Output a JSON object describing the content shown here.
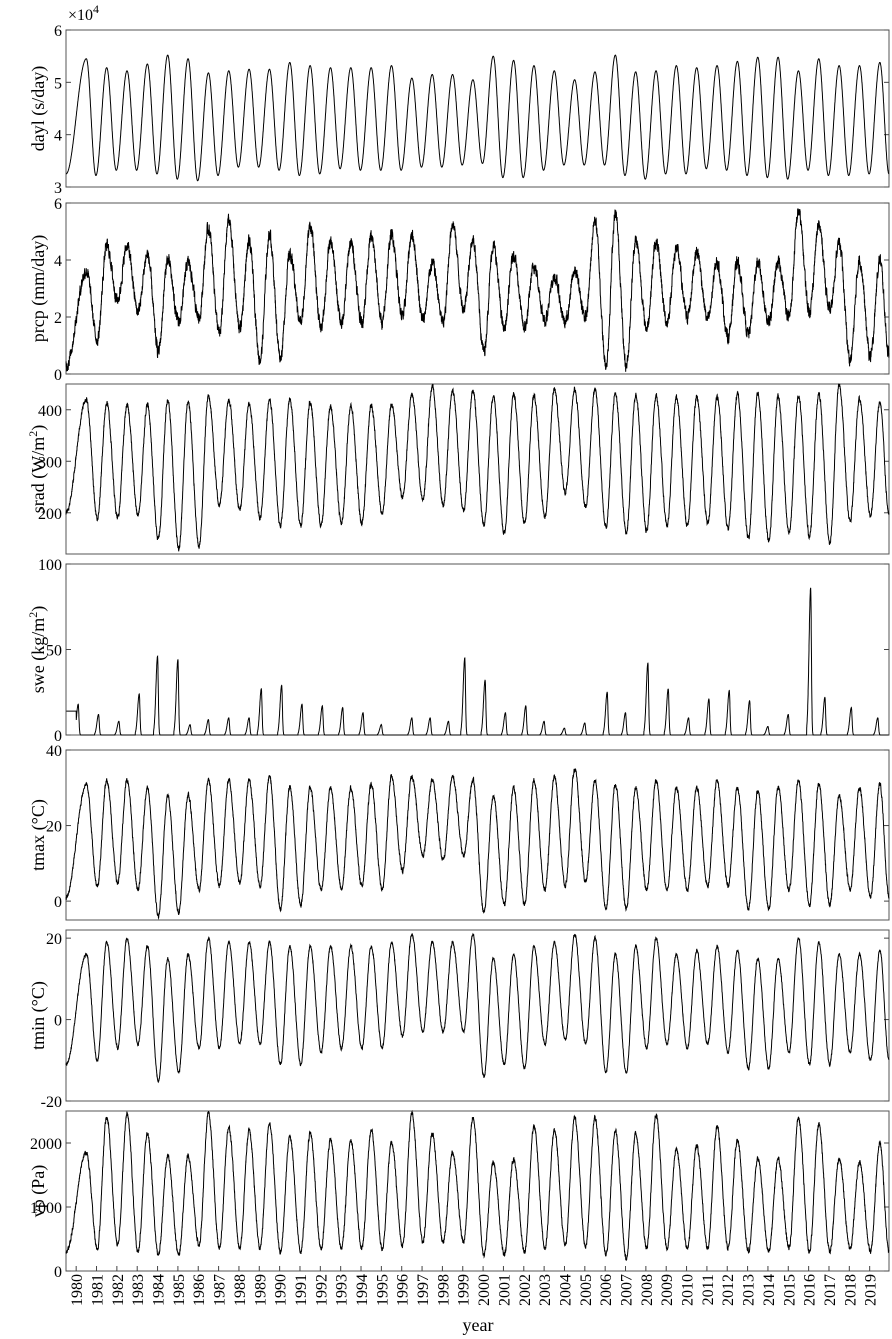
{
  "figure": {
    "xlabel": "year",
    "years": [
      "1980",
      "1981",
      "1982",
      "1983",
      "1984",
      "1985",
      "1986",
      "1987",
      "1988",
      "1989",
      "1990",
      "1991",
      "1992",
      "1993",
      "1994",
      "1995",
      "1996",
      "1997",
      "1998",
      "1999",
      "2000",
      "2001",
      "2002",
      "2003",
      "2004",
      "2005",
      "2006",
      "2007",
      "2008",
      "2009",
      "2010",
      "2011",
      "2012",
      "2013",
      "2014",
      "2015",
      "2016",
      "2017",
      "2018",
      "2019"
    ]
  },
  "chart_data": [
    {
      "type": "line",
      "ylabel": "dayl (s/day)",
      "exponent_label": "×10",
      "exponent_power": "4",
      "ylim": [
        3,
        6
      ],
      "yticks": [
        3,
        4,
        5,
        6
      ],
      "yticklabels": [
        "3",
        "4",
        "5",
        "6"
      ],
      "x_unit": "year (fractional)",
      "series": [
        {
          "values_note": "daily-mean day length, annual cycle (×10^4 s/day)",
          "peaks": [
            5.45,
            5.28,
            5.22,
            5.35,
            5.52,
            5.45,
            5.18,
            5.22,
            5.25,
            5.25,
            5.38,
            5.32,
            5.28,
            5.28,
            5.28,
            5.32,
            5.08,
            5.15,
            5.15,
            5.05,
            5.5,
            5.42,
            5.32,
            5.22,
            5.05,
            5.2,
            5.52,
            5.2,
            5.22,
            5.32,
            5.28,
            5.32,
            5.4,
            5.48,
            5.48,
            5.22,
            5.45,
            5.32,
            5.32,
            5.38
          ],
          "troughs": [
            3.22,
            3.32,
            3.32,
            3.25,
            3.15,
            3.12,
            3.22,
            3.38,
            3.38,
            3.32,
            3.22,
            3.25,
            3.35,
            3.32,
            3.32,
            3.32,
            3.38,
            3.38,
            3.42,
            3.45,
            3.18,
            3.18,
            3.32,
            3.42,
            3.42,
            3.42,
            3.22,
            3.15,
            3.25,
            3.25,
            3.35,
            3.32,
            3.22,
            3.18,
            3.15,
            3.32,
            3.22,
            3.22,
            3.25,
            3.22
          ],
          "start": 3.25,
          "end": 3.25
        }
      ]
    },
    {
      "type": "line",
      "ylabel": "prcp (mm/day)",
      "ylim": [
        0,
        6
      ],
      "yticks": [
        0,
        2,
        4,
        6
      ],
      "yticklabels": [
        "0",
        "2",
        "4",
        "6"
      ],
      "series": [
        {
          "values_note": "daily precipitation (smoothed), mm/day",
          "peaks": [
            3.6,
            4.5,
            4.5,
            4.2,
            4.0,
            3.9,
            5.1,
            5.4,
            4.6,
            4.9,
            4.2,
            5.2,
            4.6,
            4.6,
            4.8,
            4.9,
            4.9,
            3.9,
            5.3,
            4.7,
            4.5,
            4.2,
            3.8,
            3.4,
            3.6,
            5.4,
            5.6,
            4.7,
            4.6,
            4.4,
            4.3,
            3.9,
            3.9,
            3.9,
            3.9,
            5.7,
            5.2,
            4.6,
            4.0,
            4.0
          ],
          "troughs": [
            0.5,
            1.2,
            2.6,
            2.2,
            0.8,
            1.8,
            2.0,
            1.4,
            1.6,
            0.5,
            0.6,
            1.8,
            1.6,
            1.8,
            1.8,
            1.8,
            2.0,
            1.9,
            1.8,
            2.3,
            0.8,
            1.6,
            1.6,
            1.9,
            1.8,
            2.0,
            0.3,
            0.3,
            1.6,
            1.8,
            2.0,
            1.9,
            1.3,
            1.4,
            1.8,
            2.0,
            2.2,
            2.2,
            0.5,
            0.6
          ],
          "start": 0.3,
          "end": 0.7
        }
      ]
    },
    {
      "type": "line",
      "ylabel": "srad (W/m²)",
      "ylabel_main": "srad (W/m",
      "ylabel_sup": "2",
      "ylabel_tail": ")",
      "ylim": [
        120,
        450
      ],
      "yticks": [
        200,
        300,
        400
      ],
      "yticklabels": [
        "200",
        "300",
        "400"
      ],
      "series": [
        {
          "values_note": "daily shortwave radiation, W/m2",
          "peaks": [
            420,
            413,
            408,
            410,
            420,
            415,
            428,
            418,
            412,
            420,
            420,
            413,
            407,
            407,
            408,
            410,
            430,
            445,
            437,
            437,
            427,
            430,
            428,
            440,
            440,
            440,
            432,
            428,
            428,
            424,
            426,
            425,
            432,
            432,
            426,
            427,
            432,
            448,
            420,
            415
          ],
          "troughs": [
            195,
            190,
            190,
            195,
            150,
            130,
            135,
            215,
            205,
            190,
            175,
            175,
            175,
            180,
            180,
            200,
            230,
            225,
            215,
            205,
            175,
            160,
            180,
            190,
            240,
            210,
            170,
            160,
            165,
            175,
            175,
            180,
            170,
            150,
            145,
            160,
            155,
            140,
            185,
            195
          ],
          "start": 200,
          "end": 195
        }
      ]
    },
    {
      "type": "line",
      "ylabel": "swe (kg/m²)",
      "ylabel_main": "swe (kg/m",
      "ylabel_sup": "2",
      "ylabel_tail": ")",
      "ylim": [
        0,
        100
      ],
      "yticks": [
        0,
        50,
        100
      ],
      "yticklabels": [
        "0",
        "50",
        "100"
      ],
      "series": [
        {
          "values_note": "snow water equivalent winter peaks, kg/m2",
          "peaks": [
            18,
            12,
            8,
            24,
            46,
            44,
            6,
            9,
            10,
            10,
            27,
            29,
            18,
            17,
            16,
            13,
            6,
            10,
            10,
            8,
            45,
            32,
            13,
            17,
            8,
            4,
            7,
            25,
            13,
            42,
            27,
            10,
            21,
            26,
            20,
            5,
            12,
            86,
            22,
            16,
            10
          ],
          "peak_years": [
            1980.1,
            1981.1,
            1982.1,
            1983.1,
            1984.0,
            1985.0,
            1985.6,
            1986.5,
            1987.5,
            1988.5,
            1989.1,
            1990.1,
            1991.1,
            1992.1,
            1993.1,
            1994.1,
            1995.0,
            1996.5,
            1997.4,
            1998.3,
            1999.1,
            2000.1,
            2001.1,
            2002.1,
            2003.0,
            2004.0,
            2005.0,
            2006.1,
            2007.0,
            2008.1,
            2009.1,
            2010.1,
            2011.1,
            2012.1,
            2013.1,
            2014.0,
            2015.0,
            2016.1,
            2016.8,
            2018.1,
            2019.4
          ],
          "baseline": 0
        }
      ]
    },
    {
      "type": "line",
      "ylabel": "tmax (°C)",
      "ylim": [
        -5,
        40
      ],
      "yticks": [
        0,
        20,
        40
      ],
      "yticklabels": [
        "0",
        "20",
        "40"
      ],
      "series": [
        {
          "values_note": "daily maximum temperature, degC",
          "peaks": [
            31,
            32,
            32,
            30,
            28,
            28,
            32,
            32,
            32,
            33,
            30,
            30,
            30,
            30,
            31,
            33,
            33,
            32,
            33,
            32,
            28,
            30,
            32,
            33,
            35,
            32,
            31,
            30,
            32,
            30,
            30,
            32,
            30,
            29,
            30,
            32,
            31,
            28,
            30,
            31
          ],
          "troughs": [
            2,
            4,
            5,
            3,
            -4,
            -3,
            3,
            4,
            5,
            4,
            -2,
            -1,
            3,
            3,
            4,
            3,
            8,
            12,
            11,
            12,
            -3,
            -1,
            -1,
            3,
            4,
            5,
            -2,
            -2,
            3,
            3,
            3,
            4,
            4,
            -2,
            -2,
            3,
            -1,
            -1,
            3,
            1
          ],
          "start": 1,
          "end": 1
        }
      ]
    },
    {
      "type": "line",
      "ylabel": "tmin (°C)",
      "ylim": [
        -20,
        22
      ],
      "yticks": [
        -20,
        0,
        20
      ],
      "yticklabels": [
        "-20",
        "0",
        "20"
      ],
      "series": [
        {
          "values_note": "daily minimum temperature, degC",
          "peaks": [
            16,
            19,
            20,
            18,
            15,
            16,
            20,
            19,
            19,
            19,
            18,
            18,
            18,
            18,
            18,
            19,
            21,
            19,
            19,
            21,
            15,
            16,
            18,
            19,
            21,
            20,
            16,
            18,
            20,
            16,
            17,
            18,
            17,
            15,
            15,
            20,
            19,
            16,
            16,
            17
          ],
          "troughs": [
            -11,
            -10,
            -7,
            -6,
            -15,
            -13,
            -7,
            -7,
            -6,
            -6,
            -11,
            -11,
            -8,
            -7,
            -7,
            -7,
            -4,
            -3,
            -3,
            -3,
            -14,
            -11,
            -12,
            -6,
            -5,
            -6,
            -13,
            -13,
            -7,
            -6,
            -7,
            -6,
            -8,
            -12,
            -12,
            -8,
            -11,
            -11,
            -8,
            -10
          ],
          "start": -11,
          "end": -10
        }
      ]
    },
    {
      "type": "line",
      "ylabel": "vp (Pa)",
      "ylim": [
        0,
        2500
      ],
      "yticks": [
        0,
        1000,
        2000
      ],
      "yticklabels": [
        "0",
        "1000",
        "2000"
      ],
      "series": [
        {
          "values_note": "daily vapor pressure, Pa",
          "peaks": [
            1850,
            2400,
            2450,
            2150,
            1800,
            1800,
            2450,
            2250,
            2200,
            2300,
            2100,
            2150,
            2050,
            2050,
            2200,
            2000,
            2450,
            2150,
            1850,
            2400,
            1700,
            1750,
            2250,
            2200,
            2400,
            2400,
            2200,
            2150,
            2450,
            1900,
            1950,
            2250,
            2050,
            1750,
            1750,
            2400,
            2300,
            1750,
            1700,
            2000
          ],
          "troughs": [
            300,
            350,
            400,
            300,
            250,
            250,
            400,
            350,
            350,
            350,
            300,
            300,
            350,
            350,
            350,
            350,
            400,
            450,
            450,
            450,
            250,
            250,
            300,
            350,
            400,
            400,
            250,
            200,
            350,
            350,
            350,
            350,
            350,
            300,
            300,
            350,
            300,
            300,
            350,
            300
          ],
          "start": 300,
          "end": 300
        }
      ]
    }
  ]
}
